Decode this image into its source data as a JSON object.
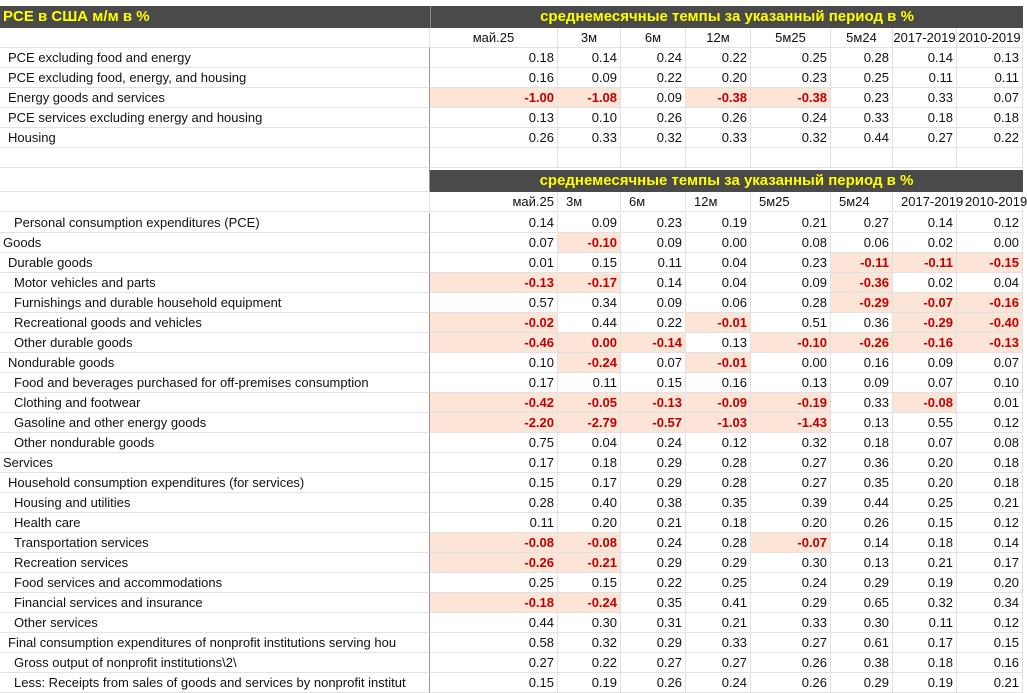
{
  "header": {
    "title": "PCE в США м/м в %",
    "subtitle": "среднемесячные темпы за указанный период в %"
  },
  "styles": {
    "header_background": "#4a4a4a",
    "header_color": "#ffff00",
    "highlight_background": "#fce4d6",
    "highlight_color": "#c00000"
  },
  "table1": {
    "columns": [
      "май.25",
      "3м",
      "6м",
      "12м",
      "5м25",
      "5м24",
      "2017-2019",
      "2010-2019"
    ],
    "rows": [
      {
        "label": "PCE excluding food and energy",
        "level": 1,
        "values": [
          "0.18",
          "0.14",
          "0.24",
          "0.22",
          "0.25",
          "0.28",
          "0.14",
          "0.13"
        ],
        "highlight": [
          false,
          false,
          false,
          false,
          false,
          false,
          false,
          false
        ]
      },
      {
        "label": "PCE excluding food, energy, and housing",
        "level": 1,
        "values": [
          "0.16",
          "0.09",
          "0.22",
          "0.20",
          "0.23",
          "0.25",
          "0.11",
          "0.11"
        ],
        "highlight": [
          false,
          false,
          false,
          false,
          false,
          false,
          false,
          false
        ]
      },
      {
        "label": "Energy goods and services",
        "level": 1,
        "values": [
          "-1.00",
          "-1.08",
          "0.09",
          "-0.38",
          "-0.38",
          "0.23",
          "0.33",
          "0.07"
        ],
        "highlight": [
          true,
          true,
          false,
          true,
          true,
          false,
          false,
          false
        ]
      },
      {
        "label": "PCE services excluding energy and housing",
        "level": 1,
        "values": [
          "0.13",
          "0.10",
          "0.26",
          "0.26",
          "0.24",
          "0.33",
          "0.18",
          "0.18"
        ],
        "highlight": [
          false,
          false,
          false,
          false,
          false,
          false,
          false,
          false
        ]
      },
      {
        "label": "Housing",
        "level": 1,
        "values": [
          "0.26",
          "0.33",
          "0.32",
          "0.33",
          "0.32",
          "0.44",
          "0.27",
          "0.22"
        ],
        "highlight": [
          false,
          false,
          false,
          false,
          false,
          false,
          false,
          false
        ]
      }
    ]
  },
  "table2": {
    "subtitle": "среднемесячные темпы за указанный период в %",
    "columns": [
      "май.25",
      "3м",
      "6м",
      "12м",
      "5м25",
      "5м24",
      "2017-2019",
      "2010-2019"
    ],
    "rows": [
      {
        "label": "Personal consumption expenditures (PCE)",
        "level": 2,
        "values": [
          "0.14",
          "0.09",
          "0.23",
          "0.19",
          "0.21",
          "0.27",
          "0.14",
          "0.12"
        ],
        "highlight": [
          false,
          false,
          false,
          false,
          false,
          false,
          false,
          false
        ]
      },
      {
        "label": "Goods",
        "level": 0,
        "values": [
          "0.07",
          "-0.10",
          "0.09",
          "0.00",
          "0.08",
          "0.06",
          "0.02",
          "0.00"
        ],
        "highlight": [
          false,
          true,
          false,
          false,
          false,
          false,
          false,
          false
        ]
      },
      {
        "label": "Durable goods",
        "level": 1,
        "values": [
          "0.01",
          "0.15",
          "0.11",
          "0.04",
          "0.23",
          "-0.11",
          "-0.11",
          "-0.15"
        ],
        "highlight": [
          false,
          false,
          false,
          false,
          false,
          true,
          true,
          true
        ]
      },
      {
        "label": "Motor vehicles and parts",
        "level": 2,
        "values": [
          "-0.13",
          "-0.17",
          "0.14",
          "0.04",
          "0.09",
          "-0.36",
          "0.02",
          "0.04"
        ],
        "highlight": [
          true,
          true,
          false,
          false,
          false,
          true,
          false,
          false
        ]
      },
      {
        "label": "Furnishings and durable household equipment",
        "level": 2,
        "values": [
          "0.57",
          "0.34",
          "0.09",
          "0.06",
          "0.28",
          "-0.29",
          "-0.07",
          "-0.16"
        ],
        "highlight": [
          false,
          false,
          false,
          false,
          false,
          true,
          true,
          true
        ]
      },
      {
        "label": "Recreational goods and vehicles",
        "level": 2,
        "values": [
          "-0.02",
          "0.44",
          "0.22",
          "-0.01",
          "0.51",
          "0.36",
          "-0.29",
          "-0.40"
        ],
        "highlight": [
          true,
          false,
          false,
          true,
          false,
          false,
          true,
          true
        ]
      },
      {
        "label": "Other durable goods",
        "level": 2,
        "values": [
          "-0.46",
          "0.00",
          "-0.14",
          "0.13",
          "-0.10",
          "-0.26",
          "-0.16",
          "-0.13"
        ],
        "highlight": [
          true,
          true,
          true,
          false,
          true,
          true,
          true,
          true
        ]
      },
      {
        "label": "Nondurable goods",
        "level": 1,
        "values": [
          "0.10",
          "-0.24",
          "0.07",
          "-0.01",
          "0.00",
          "0.16",
          "0.09",
          "0.07"
        ],
        "highlight": [
          false,
          true,
          false,
          true,
          false,
          false,
          false,
          false
        ]
      },
      {
        "label": "Food and beverages purchased for off-premises consumption",
        "level": 2,
        "values": [
          "0.17",
          "0.11",
          "0.15",
          "0.16",
          "0.13",
          "0.09",
          "0.07",
          "0.10"
        ],
        "highlight": [
          false,
          false,
          false,
          false,
          false,
          false,
          false,
          false
        ]
      },
      {
        "label": "Clothing and footwear",
        "level": 2,
        "values": [
          "-0.42",
          "-0.05",
          "-0.13",
          "-0.09",
          "-0.19",
          "0.33",
          "-0.08",
          "0.01"
        ],
        "highlight": [
          true,
          true,
          true,
          true,
          true,
          false,
          true,
          false
        ]
      },
      {
        "label": "Gasoline and other energy goods",
        "level": 2,
        "values": [
          "-2.20",
          "-2.79",
          "-0.57",
          "-1.03",
          "-1.43",
          "0.13",
          "0.55",
          "0.12"
        ],
        "highlight": [
          true,
          true,
          true,
          true,
          true,
          false,
          false,
          false
        ]
      },
      {
        "label": "Other nondurable goods",
        "level": 2,
        "values": [
          "0.75",
          "0.04",
          "0.24",
          "0.12",
          "0.32",
          "0.18",
          "0.07",
          "0.08"
        ],
        "highlight": [
          false,
          false,
          false,
          false,
          false,
          false,
          false,
          false
        ]
      },
      {
        "label": "Services",
        "level": 0,
        "values": [
          "0.17",
          "0.18",
          "0.29",
          "0.28",
          "0.27",
          "0.36",
          "0.20",
          "0.18"
        ],
        "highlight": [
          false,
          false,
          false,
          false,
          false,
          false,
          false,
          false
        ]
      },
      {
        "label": "Household consumption expenditures (for services)",
        "level": 1,
        "values": [
          "0.15",
          "0.17",
          "0.29",
          "0.28",
          "0.27",
          "0.35",
          "0.20",
          "0.18"
        ],
        "highlight": [
          false,
          false,
          false,
          false,
          false,
          false,
          false,
          false
        ]
      },
      {
        "label": "Housing and utilities",
        "level": 2,
        "values": [
          "0.28",
          "0.40",
          "0.38",
          "0.35",
          "0.39",
          "0.44",
          "0.25",
          "0.21"
        ],
        "highlight": [
          false,
          false,
          false,
          false,
          false,
          false,
          false,
          false
        ]
      },
      {
        "label": "Health care",
        "level": 2,
        "values": [
          "0.11",
          "0.20",
          "0.21",
          "0.18",
          "0.20",
          "0.26",
          "0.15",
          "0.12"
        ],
        "highlight": [
          false,
          false,
          false,
          false,
          false,
          false,
          false,
          false
        ]
      },
      {
        "label": "Transportation services",
        "level": 2,
        "values": [
          "-0.08",
          "-0.08",
          "0.24",
          "0.28",
          "-0.07",
          "0.14",
          "0.18",
          "0.14"
        ],
        "highlight": [
          true,
          true,
          false,
          false,
          true,
          false,
          false,
          false
        ]
      },
      {
        "label": "Recreation services",
        "level": 2,
        "values": [
          "-0.26",
          "-0.21",
          "0.29",
          "0.29",
          "0.30",
          "0.13",
          "0.21",
          "0.17"
        ],
        "highlight": [
          true,
          true,
          false,
          false,
          false,
          false,
          false,
          false
        ]
      },
      {
        "label": "Food services and accommodations",
        "level": 2,
        "values": [
          "0.25",
          "0.15",
          "0.22",
          "0.25",
          "0.24",
          "0.29",
          "0.19",
          "0.20"
        ],
        "highlight": [
          false,
          false,
          false,
          false,
          false,
          false,
          false,
          false
        ]
      },
      {
        "label": "Financial services and insurance",
        "level": 2,
        "values": [
          "-0.18",
          "-0.24",
          "0.35",
          "0.41",
          "0.29",
          "0.65",
          "0.32",
          "0.34"
        ],
        "highlight": [
          true,
          true,
          false,
          false,
          false,
          false,
          false,
          false
        ]
      },
      {
        "label": "Other services",
        "level": 2,
        "values": [
          "0.44",
          "0.30",
          "0.31",
          "0.21",
          "0.33",
          "0.30",
          "0.11",
          "0.12"
        ],
        "highlight": [
          false,
          false,
          false,
          false,
          false,
          false,
          false,
          false
        ]
      },
      {
        "label": "Final consumption expenditures of nonprofit institutions serving hou",
        "level": 1,
        "values": [
          "0.58",
          "0.32",
          "0.29",
          "0.33",
          "0.27",
          "0.61",
          "0.17",
          "0.15"
        ],
        "highlight": [
          false,
          false,
          false,
          false,
          false,
          false,
          false,
          false
        ]
      },
      {
        "label": "Gross output of nonprofit institutions\\2\\",
        "level": 2,
        "values": [
          "0.27",
          "0.22",
          "0.27",
          "0.27",
          "0.26",
          "0.38",
          "0.18",
          "0.16"
        ],
        "highlight": [
          false,
          false,
          false,
          false,
          false,
          false,
          false,
          false
        ]
      },
      {
        "label": "Less: Receipts from sales of goods and services by nonprofit institut",
        "level": 2,
        "values": [
          "0.15",
          "0.19",
          "0.26",
          "0.24",
          "0.26",
          "0.29",
          "0.19",
          "0.21"
        ],
        "highlight": [
          false,
          false,
          false,
          false,
          false,
          false,
          false,
          false
        ]
      }
    ]
  }
}
